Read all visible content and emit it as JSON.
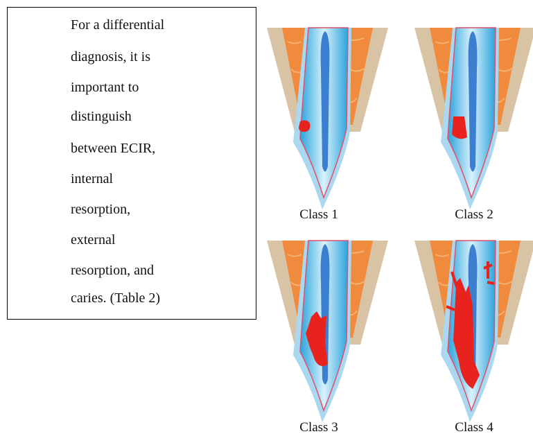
{
  "text_box": {
    "lines": [
      "For a differential",
      "diagnosis, it is",
      "important to",
      "distinguish",
      "between ECIR,",
      "internal",
      "resorption,",
      "external",
      "resorption, and",
      "caries. (Table 2)"
    ]
  },
  "figure": {
    "labels": [
      "Class 1",
      "Class 2",
      "Class 3",
      "Class 4"
    ]
  }
}
